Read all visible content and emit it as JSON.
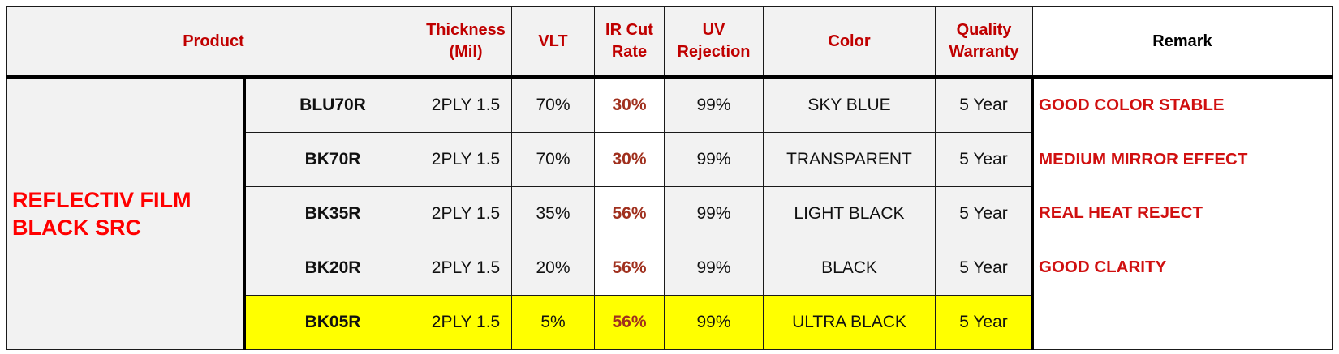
{
  "colors": {
    "header_text": "#c00000",
    "group_text": "#ff0000",
    "remark_text": "#d01010",
    "ir_value_text": "#a0301e",
    "highlight_row": "#ffff00",
    "cell_background": "#f2f2f2"
  },
  "headers": {
    "product": "Product",
    "thickness": "Thickness (Mil)",
    "vlt": "VLT",
    "ir_cut": "IR Cut Rate",
    "uv_rejection": "UV Rejection",
    "color": "Color",
    "warranty": "Quality Warranty",
    "remark": "Remark"
  },
  "group_name": "REFLECTIV FILM BLACK SRC",
  "rows": [
    {
      "code": "BLU70R",
      "thickness": "2PLY 1.5",
      "vlt": "70%",
      "ir": "30%",
      "uv": "99%",
      "color": "SKY BLUE",
      "warranty": "5 Year"
    },
    {
      "code": "BK70R",
      "thickness": "2PLY 1.5",
      "vlt": "70%",
      "ir": "30%",
      "uv": "99%",
      "color": "TRANSPARENT",
      "warranty": "5 Year"
    },
    {
      "code": "BK35R",
      "thickness": "2PLY 1.5",
      "vlt": "35%",
      "ir": "56%",
      "uv": "99%",
      "color": "LIGHT BLACK",
      "warranty": "5 Year"
    },
    {
      "code": "BK20R",
      "thickness": "2PLY 1.5",
      "vlt": "20%",
      "ir": "56%",
      "uv": "99%",
      "color": "BLACK",
      "warranty": "5 Year"
    },
    {
      "code": "BK05R",
      "thickness": "2PLY 1.5",
      "vlt": "5%",
      "ir": "56%",
      "uv": "99%",
      "color": "ULTRA BLACK",
      "warranty": "5 Year"
    }
  ],
  "remarks": [
    "GOOD COLOR STABLE",
    "MEDIUM MIRROR EFFECT",
    "REAL HEAT REJECT",
    "GOOD CLARITY"
  ]
}
